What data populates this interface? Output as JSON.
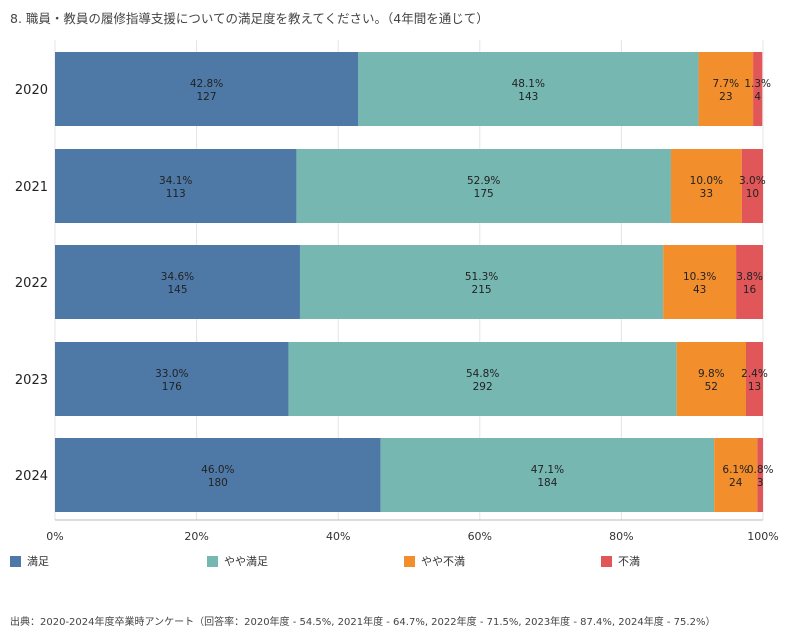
{
  "title": "8. 職員・教員の履修指導支援についての満足度を教えてください。（4年間を通じて）",
  "source": "出典：2020-2024年度卒業時アンケート（回答率：2020年度 - 54.5%, 2021年度 - 64.7%, 2022年度 - 71.5%, 2023年度 - 87.4%, 2024年度 - 75.2%）",
  "chart_data": {
    "type": "bar",
    "orientation": "horizontal",
    "stacked": true,
    "categories": [
      "2020",
      "2021",
      "2022",
      "2023",
      "2024"
    ],
    "xlim": [
      0,
      100
    ],
    "xticks": [
      "0%",
      "20%",
      "40%",
      "60%",
      "80%",
      "100%"
    ],
    "legend_position": "bottom",
    "grid": true,
    "series": [
      {
        "name": "満足",
        "color": "#4e79a7",
        "values": [
          42.8,
          34.1,
          34.6,
          33.0,
          46.0
        ],
        "value_labels": [
          "42.8%",
          "34.1%",
          "34.6%",
          "33.0%",
          "46.0%"
        ],
        "counts": [
          "127",
          "113",
          "145",
          "176",
          "180"
        ]
      },
      {
        "name": "やや満足",
        "color": "#76b7b2",
        "values": [
          48.1,
          52.9,
          51.3,
          54.8,
          47.1
        ],
        "value_labels": [
          "48.1%",
          "52.9%",
          "51.3%",
          "54.8%",
          "47.1%"
        ],
        "counts": [
          "143",
          "175",
          "215",
          "292",
          "184"
        ]
      },
      {
        "name": "やや不満",
        "color": "#f28e2b",
        "values": [
          7.7,
          10.0,
          10.3,
          9.8,
          6.1
        ],
        "value_labels": [
          "7.7%",
          "10.0%",
          "10.3%",
          "9.8%",
          "6.1%"
        ],
        "counts": [
          "23",
          "33",
          "43",
          "52",
          "24"
        ]
      },
      {
        "name": "不満",
        "color": "#e15759",
        "values": [
          1.3,
          3.0,
          3.8,
          2.4,
          0.8
        ],
        "value_labels": [
          "1.3%",
          "3.0%",
          "3.8%",
          "2.4%",
          "0.8%"
        ],
        "counts": [
          "4",
          "10",
          "16",
          "13",
          "3"
        ]
      }
    ]
  }
}
